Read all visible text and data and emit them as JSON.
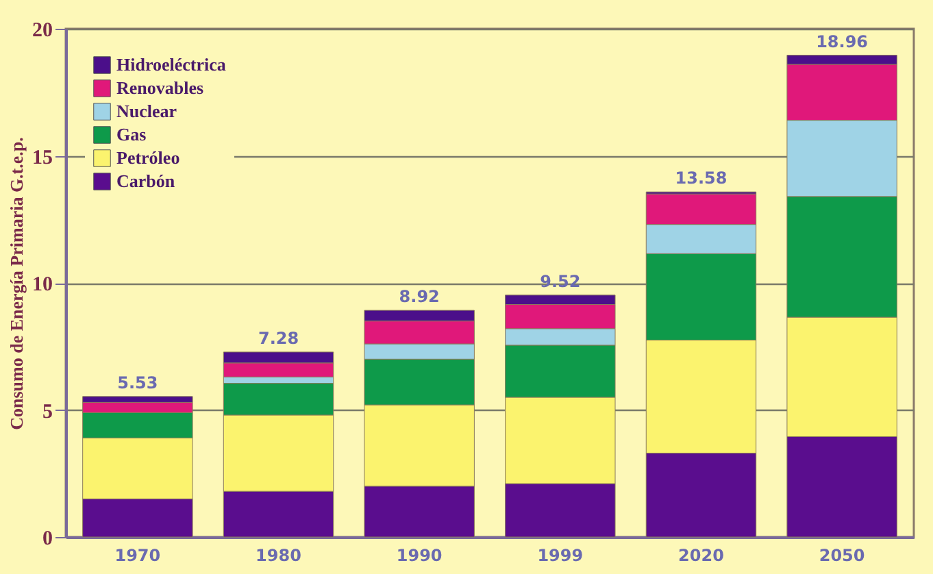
{
  "chart_data": {
    "type": "bar",
    "stacked": true,
    "ylabel": "Consumo de Energía Primaria G.t.e.p.",
    "categories": [
      "1970",
      "1980",
      "1990",
      "1999",
      "2020",
      "2050"
    ],
    "series": [
      {
        "name": "Carbón",
        "color": "#5a0d8e",
        "values": [
          1.5,
          1.8,
          2.0,
          2.1,
          3.3,
          3.95
        ]
      },
      {
        "name": "Petróleo",
        "color": "#fbf36e",
        "values": [
          2.4,
          3.0,
          3.2,
          3.4,
          4.45,
          4.7
        ]
      },
      {
        "name": "Gas",
        "color": "#0e9a4a",
        "values": [
          1.0,
          1.25,
          1.8,
          2.05,
          3.4,
          4.75
        ]
      },
      {
        "name": "Nuclear",
        "color": "#9fd3e6",
        "values": [
          0,
          0.25,
          0.6,
          0.65,
          1.15,
          3.0
        ]
      },
      {
        "name": "Renovables",
        "color": "#e0187a",
        "values": [
          0.4,
          0.55,
          0.9,
          0.95,
          1.2,
          2.2
        ]
      },
      {
        "name": "Hidroeléctrica",
        "color": "#4b0f8a",
        "values": [
          0.23,
          0.43,
          0.42,
          0.37,
          0.08,
          0.36
        ]
      }
    ],
    "totals": [
      "5.53",
      "7.28",
      "8.92",
      "9.52",
      "13.58",
      "18.96"
    ],
    "ylim": [
      0,
      20
    ],
    "yticks": [
      0,
      5,
      10,
      15,
      20
    ],
    "grid": "y",
    "legend": "top left"
  }
}
